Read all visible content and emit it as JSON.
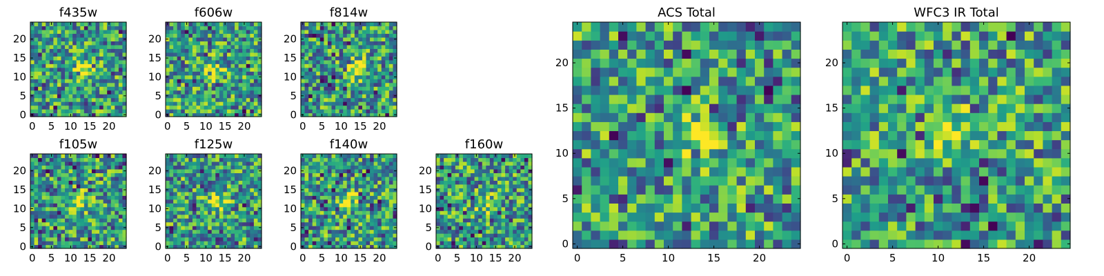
{
  "chart_data": [
    {
      "type": "heatmap",
      "title": "f435w",
      "grid_size": 25,
      "colormap": "viridis",
      "xticks": [
        0,
        5,
        10,
        15,
        20
      ],
      "yticks": [
        0,
        5,
        10,
        15,
        20
      ],
      "xlim": [
        -0.5,
        24.5
      ],
      "ylim": [
        -0.5,
        24.5
      ],
      "source_center": [
        13.5,
        12
      ],
      "seed": 3
    },
    {
      "type": "heatmap",
      "title": "f606w",
      "grid_size": 25,
      "colormap": "viridis",
      "xticks": [
        0,
        5,
        10,
        15,
        20
      ],
      "yticks": [
        0,
        5,
        10,
        15,
        20
      ],
      "xlim": [
        -0.5,
        24.5
      ],
      "ylim": [
        -0.5,
        24.5
      ],
      "source_center": [
        12,
        12
      ],
      "seed": 7
    },
    {
      "type": "heatmap",
      "title": "f814w",
      "grid_size": 25,
      "colormap": "viridis",
      "xticks": [
        0,
        5,
        10,
        15,
        20
      ],
      "yticks": [
        0,
        5,
        10,
        15,
        20
      ],
      "xlim": [
        -0.5,
        24.5
      ],
      "ylim": [
        -0.5,
        24.5
      ],
      "source_center": [
        14,
        12
      ],
      "seed": 11
    },
    {
      "type": "heatmap",
      "title": "f105w",
      "grid_size": 25,
      "colormap": "viridis",
      "xticks": [
        0,
        5,
        10,
        15,
        20
      ],
      "yticks": [
        0,
        5,
        10,
        15,
        20
      ],
      "xlim": [
        -0.5,
        24.5
      ],
      "ylim": [
        -0.5,
        24.5
      ],
      "source_center": [
        12,
        12
      ],
      "seed": 13
    },
    {
      "type": "heatmap",
      "title": "f125w",
      "grid_size": 25,
      "colormap": "viridis",
      "xticks": [
        0,
        5,
        10,
        15,
        20
      ],
      "yticks": [
        0,
        5,
        10,
        15,
        20
      ],
      "xlim": [
        -0.5,
        24.5
      ],
      "ylim": [
        -0.5,
        24.5
      ],
      "source_center": [
        13,
        12
      ],
      "seed": 17
    },
    {
      "type": "heatmap",
      "title": "f140w",
      "grid_size": 25,
      "colormap": "viridis",
      "xticks": [
        0,
        5,
        10,
        15,
        20
      ],
      "yticks": [
        0,
        5,
        10,
        15,
        20
      ],
      "xlim": [
        -0.5,
        24.5
      ],
      "ylim": [
        -0.5,
        24.5
      ],
      "source_center": [
        12,
        12
      ],
      "seed": 19
    },
    {
      "type": "heatmap",
      "title": "f160w",
      "grid_size": 25,
      "colormap": "viridis",
      "xticks": [
        0,
        5,
        10,
        15,
        20
      ],
      "yticks": [
        0,
        5,
        10,
        15,
        20
      ],
      "xlim": [
        -0.5,
        24.5
      ],
      "ylim": [
        -0.5,
        24.5
      ],
      "source_center": [
        12.5,
        11.5
      ],
      "seed": 23
    },
    {
      "type": "heatmap",
      "title": "ACS Total",
      "grid_size": 25,
      "colormap": "viridis",
      "xticks": [
        0,
        5,
        10,
        15,
        20
      ],
      "yticks": [
        0,
        5,
        10,
        15,
        20
      ],
      "xlim": [
        -0.5,
        24.5
      ],
      "ylim": [
        -0.5,
        24.5
      ],
      "source_center": [
        13.5,
        12
      ],
      "seed": 29
    },
    {
      "type": "heatmap",
      "title": "WFC3 IR Total",
      "grid_size": 25,
      "colormap": "viridis",
      "xticks": [
        0,
        5,
        10,
        15,
        20
      ],
      "yticks": [
        0,
        5,
        10,
        15,
        20
      ],
      "xlim": [
        -0.5,
        24.5
      ],
      "ylim": [
        -0.5,
        24.5
      ],
      "source_center": [
        12,
        12
      ],
      "seed": 31
    }
  ]
}
